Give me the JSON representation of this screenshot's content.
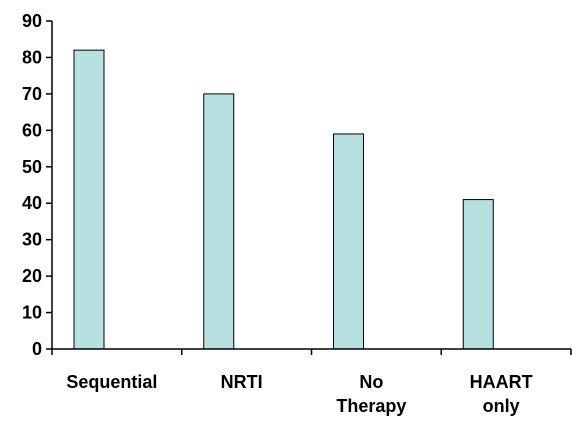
{
  "chart_data": {
    "type": "bar",
    "categories": [
      [
        "Sequential"
      ],
      [
        "NRTI"
      ],
      [
        "No",
        "Therapy"
      ],
      [
        "HAART",
        "only"
      ]
    ],
    "values": [
      82,
      70,
      59,
      41
    ],
    "title": "",
    "xlabel": "",
    "ylabel": "",
    "ylim": [
      0,
      90
    ],
    "yticks": [
      0,
      10,
      20,
      30,
      40,
      50,
      60,
      70,
      80,
      90
    ],
    "grid": false,
    "legend": "none",
    "colors": {
      "bar_fill": "#b7e1e1",
      "bar_stroke": "#000000"
    }
  }
}
